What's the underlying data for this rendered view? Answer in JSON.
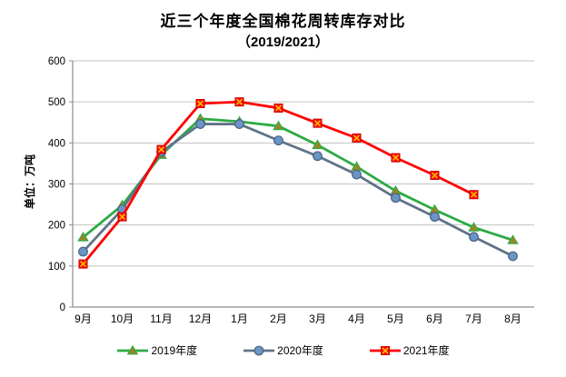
{
  "title": "近三个年度全国棉花周转库存对比",
  "subtitle": "（2019/2021）",
  "y_axis_title": "单位：万吨",
  "colors": {
    "background": "#ffffff",
    "gridline": "#c3c3c3",
    "axis": "#8c8c8c",
    "text": "#000000"
  },
  "chart_data": {
    "type": "line",
    "title": "近三个年度全国棉花周转库存对比（2019/2021）",
    "ylabel": "单位：万吨",
    "ylim": [
      0,
      600
    ],
    "y_ticks": [
      0,
      100,
      200,
      300,
      400,
      500,
      600
    ],
    "grid": true,
    "legend_position": "bottom",
    "categories": [
      "9月",
      "10月",
      "11月",
      "12月",
      "1月",
      "2月",
      "3月",
      "4月",
      "5月",
      "6月",
      "7月",
      "8月"
    ],
    "series": [
      {
        "name": "2019年度",
        "marker": "triangle",
        "line_color": "#2eaa46",
        "marker_fill": "#a08421",
        "marker_edge": "#2eaa46",
        "values": [
          170,
          248,
          371,
          459,
          452,
          441,
          395,
          342,
          283,
          237,
          194,
          163
        ]
      },
      {
        "name": "2020年度",
        "marker": "circle",
        "line_color": "#607388",
        "marker_fill": "#6b94c7",
        "marker_edge": "#48627e",
        "values": [
          135,
          238,
          378,
          446,
          446,
          406,
          368,
          323,
          266,
          220,
          171,
          124
        ]
      },
      {
        "name": "2021年度",
        "marker": "x-square",
        "line_color": "#fe0000",
        "marker_fill": "#fe0000",
        "marker_edge": "#ffc000",
        "values": [
          105,
          220,
          384,
          496,
          500,
          485,
          448,
          412,
          364,
          321,
          274,
          null
        ]
      }
    ]
  }
}
